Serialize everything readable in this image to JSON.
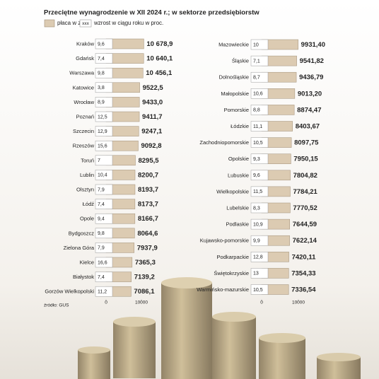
{
  "title": "Przeciętne wynagrodzenie w XII 2024 r.; w sektorze przedsiębiorstw",
  "legend": {
    "value": "płaca w zł",
    "growth_sample": "xxx",
    "growth": "wzrost w ciągu roku w proc."
  },
  "source": "źródło: GUS",
  "chart_data": [
    {
      "type": "bar",
      "orientation": "horizontal",
      "color": "#dccbb2",
      "categories": [
        "Kraków",
        "Gdańsk",
        "Warszawa",
        "Katowice",
        "Wrocław",
        "Poznań",
        "Szczecin",
        "Rzeszów",
        "Toruń",
        "Lublin",
        "Olsztyn",
        "Łódź",
        "Opole",
        "Bydgoszcz",
        "Zielona Góra",
        "Kielce",
        "Białystok",
        "Gorzów Wielkopolski"
      ],
      "values": [
        10678.9,
        10640.1,
        10456.1,
        9522.5,
        9433.0,
        9411.7,
        9247.1,
        9092.8,
        8295.5,
        8200.7,
        8193.7,
        8173.7,
        8166.7,
        8064.6,
        7937.9,
        7365.3,
        7139.2,
        7086.1
      ],
      "value_labels": [
        "10 678,9",
        "10 640,1",
        "10 456,1",
        "9522,5",
        "9433,0",
        "9411,7",
        "9247,1",
        "9092,8",
        "8295,5",
        "8200,7",
        "8193,7",
        "8173,7",
        "8166,7",
        "8064,6",
        "7937,9",
        "7365,3",
        "7139,2",
        "7086,1"
      ],
      "growth": [
        9.6,
        7.4,
        9.8,
        3.8,
        8.9,
        12.5,
        12.9,
        15.6,
        7,
        10.4,
        7.9,
        7.4,
        9.4,
        9.8,
        7.9,
        16.6,
        7.4,
        11.2
      ],
      "growth_labels": [
        "9,6",
        "7,4",
        "9,8",
        "3,8",
        "8,9",
        "12,5",
        "12,9",
        "15,6",
        "7",
        "10,4",
        "7,9",
        "7,4",
        "9,4",
        "9,8",
        "7,9",
        "16,6",
        "7,4",
        "11,2"
      ],
      "xlim": [
        0,
        10000
      ],
      "xticks": [
        0,
        10000
      ]
    },
    {
      "type": "bar",
      "orientation": "horizontal",
      "color": "#dccbb2",
      "categories": [
        "Mazowieckie",
        "Śląskie",
        "Dolnośląskie",
        "Małopolskie",
        "Pomorskie",
        "Łódzkie",
        "Zachodniopomorskie",
        "Opolskie",
        "Lubuskie",
        "Wielkopolskie",
        "Lubelskie",
        "Podlaskie",
        "Kujawsko-pomorskie",
        "Podkarpackie",
        "Świętokrzyskie",
        "Warmińsko-mazurskie"
      ],
      "values": [
        9931.4,
        9541.82,
        9436.79,
        9013.2,
        8874.47,
        8403.67,
        8097.75,
        7950.15,
        7804.82,
        7784.21,
        7770.52,
        7644.59,
        7622.14,
        7420.11,
        7354.33,
        7336.54
      ],
      "value_labels": [
        "9931,40",
        "9541,82",
        "9436,79",
        "9013,20",
        "8874,47",
        "8403,67",
        "8097,75",
        "7950,15",
        "7804,82",
        "7784,21",
        "7770,52",
        "7644,59",
        "7622,14",
        "7420,11",
        "7354,33",
        "7336,54"
      ],
      "growth": [
        10,
        7.1,
        8.7,
        10.6,
        8.8,
        11.1,
        10.5,
        9.3,
        9.6,
        11.5,
        8.3,
        10.9,
        9.9,
        12.8,
        13,
        10.5
      ],
      "growth_labels": [
        "10",
        "7,1",
        "8,7",
        "10,6",
        "8,8",
        "11,1",
        "10,5",
        "9,3",
        "9,6",
        "11,5",
        "8,3",
        "10,9",
        "9,9",
        "12,8",
        "13",
        "10,5"
      ],
      "xlim": [
        0,
        10000
      ],
      "xticks": [
        0,
        10000
      ]
    }
  ]
}
